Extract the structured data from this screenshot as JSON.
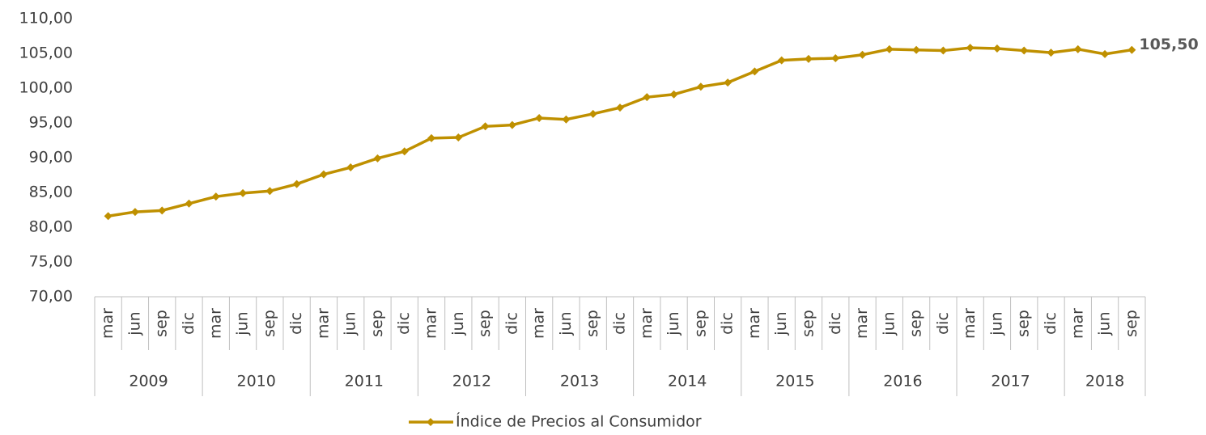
{
  "chart_data": {
    "type": "line",
    "categories": [
      "mar",
      "jun",
      "sep",
      "dic",
      "mar",
      "jun",
      "sep",
      "dic",
      "mar",
      "jun",
      "sep",
      "dic",
      "mar",
      "jun",
      "sep",
      "dic",
      "mar",
      "jun",
      "sep",
      "dic",
      "mar",
      "jun",
      "sep",
      "dic",
      "mar",
      "jun",
      "sep",
      "dic",
      "mar",
      "jun",
      "sep",
      "dic",
      "mar",
      "jun",
      "sep",
      "dic",
      "mar",
      "jun",
      "sep"
    ],
    "groups": [
      {
        "name": "2009",
        "count": 4
      },
      {
        "name": "2010",
        "count": 4
      },
      {
        "name": "2011",
        "count": 4
      },
      {
        "name": "2012",
        "count": 4
      },
      {
        "name": "2013",
        "count": 4
      },
      {
        "name": "2014",
        "count": 4
      },
      {
        "name": "2015",
        "count": 4
      },
      {
        "name": "2016",
        "count": 4
      },
      {
        "name": "2017",
        "count": 4
      },
      {
        "name": "2018",
        "count": 3
      }
    ],
    "series": [
      {
        "name": "Índice de Precios al Consumidor",
        "color": "#bf9000",
        "values": [
          81.6,
          82.2,
          82.4,
          83.4,
          84.4,
          84.9,
          85.2,
          86.2,
          87.6,
          88.6,
          89.9,
          90.9,
          92.8,
          92.9,
          94.5,
          94.7,
          95.7,
          95.5,
          96.3,
          97.2,
          98.7,
          99.1,
          100.2,
          100.8,
          102.4,
          104.0,
          104.2,
          104.3,
          104.8,
          105.6,
          105.5,
          105.4,
          105.8,
          105.7,
          105.4,
          105.1,
          105.6,
          104.9,
          105.5
        ],
        "value_labels": [
          null,
          null,
          null,
          null,
          null,
          null,
          null,
          null,
          null,
          null,
          null,
          null,
          null,
          null,
          null,
          null,
          null,
          null,
          null,
          null,
          null,
          null,
          null,
          null,
          null,
          null,
          null,
          null,
          null,
          null,
          null,
          null,
          null,
          null,
          null,
          null,
          null,
          null,
          "105,50"
        ]
      }
    ],
    "ylim": [
      70,
      110
    ],
    "yticks": [
      {
        "value": 70,
        "label": "70,00"
      },
      {
        "value": 75,
        "label": "75,00"
      },
      {
        "value": 80,
        "label": "80,00"
      },
      {
        "value": 85,
        "label": "85,00"
      },
      {
        "value": 90,
        "label": "90,00"
      },
      {
        "value": 95,
        "label": "95,00"
      },
      {
        "value": 100,
        "label": "100,00"
      },
      {
        "value": 105,
        "label": "105,00"
      },
      {
        "value": 110,
        "label": "110,00"
      }
    ],
    "grid": false,
    "legend": "bottom"
  }
}
